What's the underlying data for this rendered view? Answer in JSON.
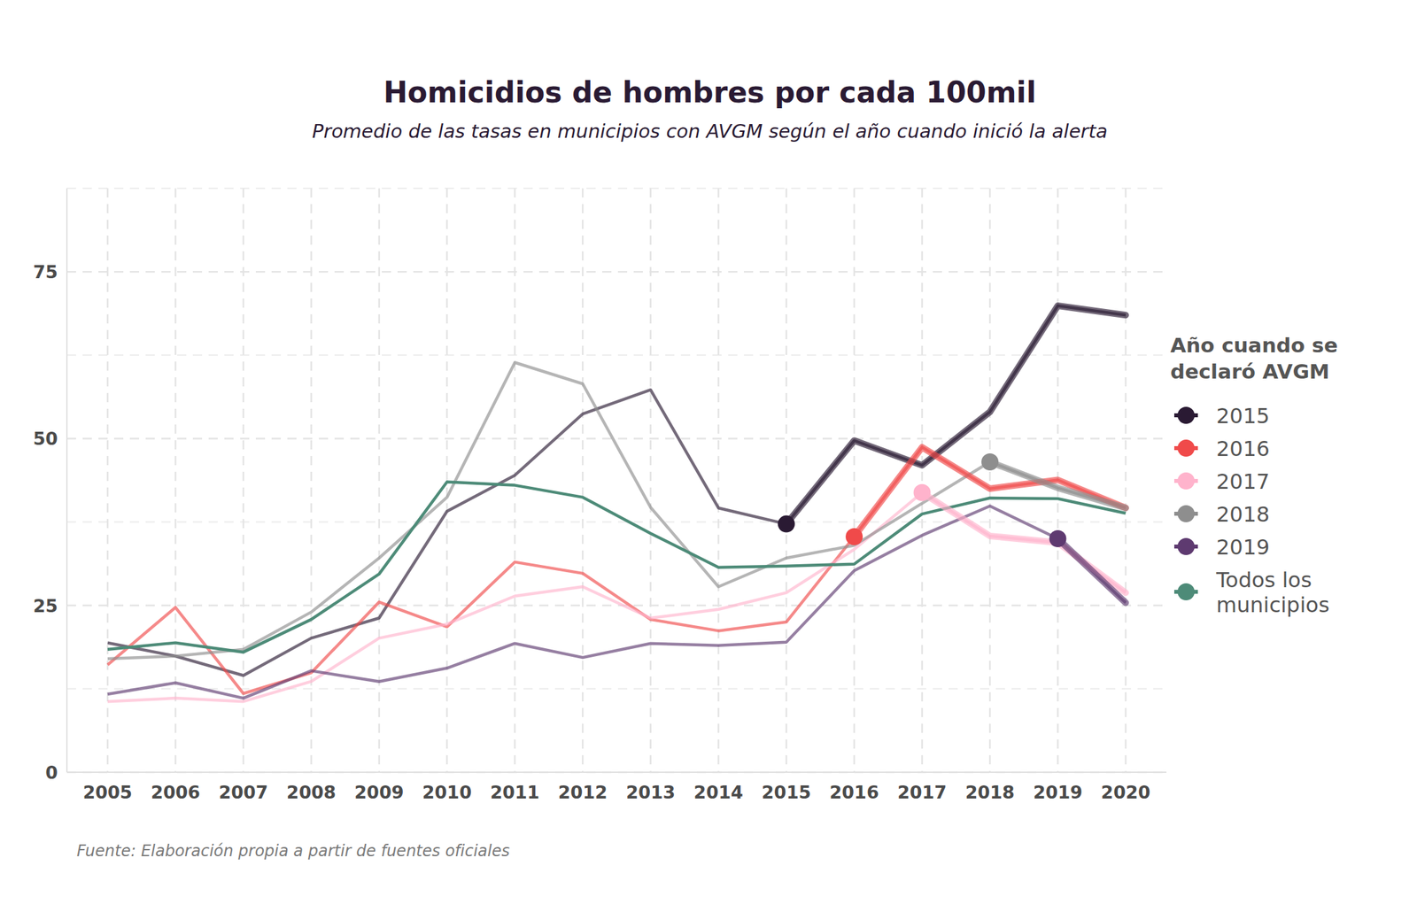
{
  "chart_data": {
    "type": "line",
    "title": "Homicidios de hombres por cada 100mil",
    "subtitle": "Promedio de las tasas en municipios con AVGM según el año cuando inició la alerta",
    "source": "Fuente: Elaboración propia a partir de fuentes oficiales",
    "legend_title": "Año cuando se declaró AVGM",
    "legend": "right",
    "grid": true,
    "marker": "circle",
    "x": [
      2005,
      2006,
      2007,
      2008,
      2009,
      2010,
      2011,
      2012,
      2013,
      2014,
      2015,
      2016,
      2017,
      2018,
      2019,
      2020
    ],
    "xlim": [
      2004.4,
      2020.6
    ],
    "xticks": [
      2005,
      2006,
      2007,
      2008,
      2009,
      2010,
      2011,
      2012,
      2013,
      2014,
      2015,
      2016,
      2017,
      2018,
      2019,
      2020
    ],
    "ylim": [
      0,
      87.5
    ],
    "yticks": [
      0,
      25,
      50,
      75
    ],
    "series": [
      {
        "name": "2015",
        "color": "#2a1a33",
        "highlight_from": 2015,
        "values": [
          19.4,
          17.4,
          14.5,
          20.1,
          23.1,
          39.1,
          44.5,
          53.7,
          57.3,
          39.6,
          37.2,
          49.7,
          46.0,
          54.0,
          69.9,
          68.5
        ]
      },
      {
        "name": "2016",
        "color": "#f04a4a",
        "highlight_from": 2016,
        "values": [
          16.1,
          24.7,
          11.8,
          14.9,
          25.5,
          21.8,
          31.5,
          29.8,
          22.9,
          21.2,
          22.5,
          35.3,
          48.7,
          42.5,
          43.8,
          39.6
        ]
      },
      {
        "name": "2017",
        "color": "#ffb3cc",
        "highlight_from": 2017,
        "values": [
          10.6,
          11.1,
          10.6,
          13.6,
          20.1,
          22.2,
          26.4,
          27.8,
          23.1,
          24.4,
          26.9,
          33.4,
          41.9,
          35.4,
          34.4,
          26.9
        ]
      },
      {
        "name": "2018",
        "color": "#8e8e8e",
        "highlight_from": 2018,
        "values": [
          17.0,
          17.4,
          18.4,
          24.0,
          32.1,
          41.2,
          61.4,
          58.2,
          39.7,
          27.8,
          32.1,
          34.0,
          40.3,
          46.5,
          42.6,
          39.6
        ]
      },
      {
        "name": "2019",
        "color": "#5e3a70",
        "highlight_from": 2019,
        "values": [
          11.7,
          13.4,
          11.1,
          15.2,
          13.6,
          15.6,
          19.3,
          17.2,
          19.3,
          19.0,
          19.5,
          30.2,
          35.5,
          39.9,
          35.0,
          25.4
        ]
      },
      {
        "name": "Todos los municipios",
        "color": "#4d8b78",
        "values": [
          18.4,
          19.4,
          18.0,
          22.9,
          29.7,
          43.5,
          43.0,
          41.2,
          35.8,
          30.7,
          30.9,
          31.2,
          38.7,
          41.1,
          41.0,
          38.8
        ]
      }
    ]
  }
}
